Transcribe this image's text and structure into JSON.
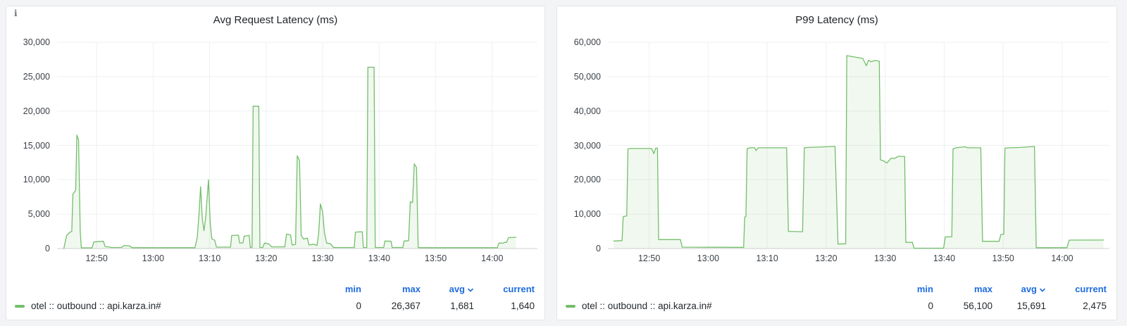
{
  "colors": {
    "page_background": "#f3f4f5",
    "panel_background": "#ffffff",
    "panel_border": "#e2e4e6",
    "series_green": "#73bf69",
    "series_fill": "rgba(115,191,105,0.10)",
    "grid_line": "#eef0f1",
    "axis_line": "#d0d2d4",
    "text": "#24292e",
    "link_blue": "#1f6ce0"
  },
  "panels": [
    {
      "title": "Avg Request Latency (ms)",
      "info_icon": "i",
      "legend": {
        "headers": {
          "min": "min",
          "max": "max",
          "avg": "avg",
          "current": "current"
        },
        "series": [
          {
            "name": "otel :: outbound :: api.karza.in#",
            "min": "0",
            "max": "26,367",
            "avg": "1,681",
            "current": "1,640"
          }
        ]
      }
    },
    {
      "title": "P99 Latency (ms)",
      "legend": {
        "headers": {
          "min": "min",
          "max": "max",
          "avg": "avg",
          "current": "current"
        },
        "series": [
          {
            "name": "otel :: outbound :: api.karza.in#",
            "min": "0",
            "max": "56,100",
            "avg": "15,691",
            "current": "2,475"
          }
        ]
      }
    }
  ],
  "chart_data": [
    {
      "type": "area",
      "title": "Avg Request Latency (ms)",
      "unit": "ms",
      "grid": true,
      "legend_position": "bottom",
      "x_note": "x values are minutes after 12:43",
      "x_range": [
        0,
        85
      ],
      "x_ticks": [
        {
          "t": 7,
          "label": "12:50"
        },
        {
          "t": 17,
          "label": "13:00"
        },
        {
          "t": 27,
          "label": "13:10"
        },
        {
          "t": 37,
          "label": "13:20"
        },
        {
          "t": 47,
          "label": "13:30"
        },
        {
          "t": 57,
          "label": "13:40"
        },
        {
          "t": 67,
          "label": "13:50"
        },
        {
          "t": 77,
          "label": "14:00"
        }
      ],
      "y_range": [
        0,
        30000
      ],
      "y_ticks": [
        {
          "v": 0,
          "label": "0"
        },
        {
          "v": 5000,
          "label": "5,000"
        },
        {
          "v": 10000,
          "label": "10,000"
        },
        {
          "v": 15000,
          "label": "15,000"
        },
        {
          "v": 20000,
          "label": "20,000"
        },
        {
          "v": 25000,
          "label": "25,000"
        },
        {
          "v": 30000,
          "label": "30,000"
        }
      ],
      "series": [
        {
          "name": "otel :: outbound :: api.karza.in#",
          "color": "#73bf69",
          "points": [
            [
              1.2,
              0
            ],
            [
              1.7,
              1900
            ],
            [
              2.3,
              2400
            ],
            [
              2.6,
              2500
            ],
            [
              2.8,
              7900
            ],
            [
              3.3,
              8500
            ],
            [
              3.5,
              16500
            ],
            [
              3.8,
              15800
            ],
            [
              4.1,
              2500
            ],
            [
              4.3,
              100
            ],
            [
              6.2,
              100
            ],
            [
              6.5,
              950
            ],
            [
              7.1,
              1000
            ],
            [
              8.2,
              1050
            ],
            [
              8.5,
              300
            ],
            [
              9.8,
              150
            ],
            [
              11.4,
              150
            ],
            [
              11.8,
              420
            ],
            [
              12.8,
              400
            ],
            [
              13.3,
              120
            ],
            [
              24.4,
              120
            ],
            [
              24.8,
              1600
            ],
            [
              25.1,
              4800
            ],
            [
              25.4,
              9000
            ],
            [
              25.7,
              4300
            ],
            [
              26.0,
              2600
            ],
            [
              26.3,
              4500
            ],
            [
              26.8,
              10000
            ],
            [
              27.1,
              3800
            ],
            [
              27.4,
              1400
            ],
            [
              27.9,
              1200
            ],
            [
              28.2,
              200
            ],
            [
              30.7,
              200
            ],
            [
              30.9,
              1900
            ],
            [
              32.1,
              1950
            ],
            [
              32.3,
              800
            ],
            [
              32.9,
              820
            ],
            [
              33.1,
              1800
            ],
            [
              34.0,
              1900
            ],
            [
              34.2,
              150
            ],
            [
              34.5,
              150
            ],
            [
              34.7,
              20700
            ],
            [
              35.7,
              20700
            ],
            [
              35.9,
              150
            ],
            [
              36.4,
              150
            ],
            [
              36.7,
              800
            ],
            [
              37.4,
              700
            ],
            [
              38.0,
              250
            ],
            [
              40.3,
              250
            ],
            [
              40.6,
              2100
            ],
            [
              41.3,
              2000
            ],
            [
              41.6,
              500
            ],
            [
              42.2,
              600
            ],
            [
              42.5,
              13500
            ],
            [
              42.9,
              12800
            ],
            [
              43.2,
              1900
            ],
            [
              43.6,
              1400
            ],
            [
              44.3,
              1500
            ],
            [
              44.6,
              500
            ],
            [
              45.3,
              650
            ],
            [
              46.0,
              450
            ],
            [
              46.3,
              2300
            ],
            [
              46.6,
              6500
            ],
            [
              47.0,
              5300
            ],
            [
              47.3,
              2400
            ],
            [
              47.7,
              800
            ],
            [
              48.4,
              700
            ],
            [
              48.9,
              150
            ],
            [
              52.6,
              150
            ],
            [
              52.8,
              2400
            ],
            [
              54.0,
              2450
            ],
            [
              54.2,
              150
            ],
            [
              54.8,
              150
            ],
            [
              55.0,
              26367
            ],
            [
              56.1,
              26367
            ],
            [
              56.3,
              150
            ],
            [
              57.8,
              150
            ],
            [
              58.0,
              1100
            ],
            [
              59.1,
              1050
            ],
            [
              59.3,
              150
            ],
            [
              61.2,
              150
            ],
            [
              61.4,
              1100
            ],
            [
              62.2,
              1150
            ],
            [
              62.5,
              6800
            ],
            [
              62.9,
              6700
            ],
            [
              63.2,
              12300
            ],
            [
              63.6,
              11800
            ],
            [
              63.9,
              150
            ],
            [
              64.3,
              120
            ],
            [
              77.9,
              120
            ],
            [
              78.2,
              800
            ],
            [
              78.9,
              780
            ],
            [
              79.2,
              900
            ],
            [
              79.5,
              880
            ],
            [
              79.9,
              1600
            ],
            [
              81.2,
              1640
            ]
          ]
        }
      ]
    },
    {
      "type": "area",
      "title": "P99 Latency (ms)",
      "unit": "ms",
      "grid": true,
      "legend_position": "bottom",
      "x_note": "x values are minutes after 12:43",
      "x_range": [
        0,
        85
      ],
      "x_ticks": [
        {
          "t": 7,
          "label": "12:50"
        },
        {
          "t": 17,
          "label": "13:00"
        },
        {
          "t": 27,
          "label": "13:10"
        },
        {
          "t": 37,
          "label": "13:20"
        },
        {
          "t": 47,
          "label": "13:30"
        },
        {
          "t": 57,
          "label": "13:40"
        },
        {
          "t": 67,
          "label": "13:50"
        },
        {
          "t": 77,
          "label": "14:00"
        }
      ],
      "y_range": [
        0,
        60000
      ],
      "y_ticks": [
        {
          "v": 0,
          "label": "0"
        },
        {
          "v": 10000,
          "label": "10,000"
        },
        {
          "v": 20000,
          "label": "20,000"
        },
        {
          "v": 30000,
          "label": "30,000"
        },
        {
          "v": 40000,
          "label": "40,000"
        },
        {
          "v": 50000,
          "label": "50,000"
        },
        {
          "v": 60000,
          "label": "60,000"
        }
      ],
      "series": [
        {
          "name": "otel :: outbound :: api.karza.in#",
          "color": "#73bf69",
          "points": [
            [
              1.0,
              2200
            ],
            [
              2.4,
              2300
            ],
            [
              2.6,
              9300
            ],
            [
              3.2,
              9500
            ],
            [
              3.4,
              29000
            ],
            [
              3.8,
              29100
            ],
            [
              7.4,
              29100
            ],
            [
              7.8,
              27600
            ],
            [
              8.1,
              29200
            ],
            [
              8.4,
              29200
            ],
            [
              8.6,
              2600
            ],
            [
              12.3,
              2600
            ],
            [
              12.6,
              400
            ],
            [
              23.0,
              350
            ],
            [
              23.2,
              9200
            ],
            [
              23.4,
              9300
            ],
            [
              23.6,
              29000
            ],
            [
              24.0,
              29300
            ],
            [
              24.9,
              29300
            ],
            [
              25.1,
              28500
            ],
            [
              25.5,
              29300
            ],
            [
              30.3,
              29300
            ],
            [
              30.6,
              5000
            ],
            [
              33.0,
              4900
            ],
            [
              33.3,
              29300
            ],
            [
              34.0,
              29400
            ],
            [
              38.5,
              29700
            ],
            [
              39.0,
              1300
            ],
            [
              40.3,
              1400
            ],
            [
              40.5,
              56100
            ],
            [
              41.5,
              55800
            ],
            [
              43.2,
              55300
            ],
            [
              43.8,
              53200
            ],
            [
              44.2,
              54800
            ],
            [
              44.6,
              54300
            ],
            [
              45.3,
              54700
            ],
            [
              46.0,
              54500
            ],
            [
              46.2,
              25800
            ],
            [
              46.6,
              25600
            ],
            [
              47.3,
              24900
            ],
            [
              48.0,
              26300
            ],
            [
              48.6,
              26200
            ],
            [
              49.2,
              26800
            ],
            [
              50.3,
              26800
            ],
            [
              50.5,
              1800
            ],
            [
              51.6,
              1800
            ],
            [
              51.9,
              100
            ],
            [
              56.9,
              100
            ],
            [
              57.2,
              3400
            ],
            [
              58.3,
              3400
            ],
            [
              58.5,
              29000
            ],
            [
              59.0,
              29300
            ],
            [
              60.5,
              29600
            ],
            [
              61.0,
              29300
            ],
            [
              63.2,
              29300
            ],
            [
              63.5,
              2100
            ],
            [
              66.3,
              2100
            ],
            [
              66.6,
              4100
            ],
            [
              67.1,
              4200
            ],
            [
              67.3,
              29200
            ],
            [
              68.0,
              29300
            ],
            [
              70.0,
              29400
            ],
            [
              72.3,
              29700
            ],
            [
              72.6,
              250
            ],
            [
              77.8,
              250
            ],
            [
              78.2,
              2450
            ],
            [
              84.0,
              2475
            ]
          ]
        }
      ]
    }
  ]
}
